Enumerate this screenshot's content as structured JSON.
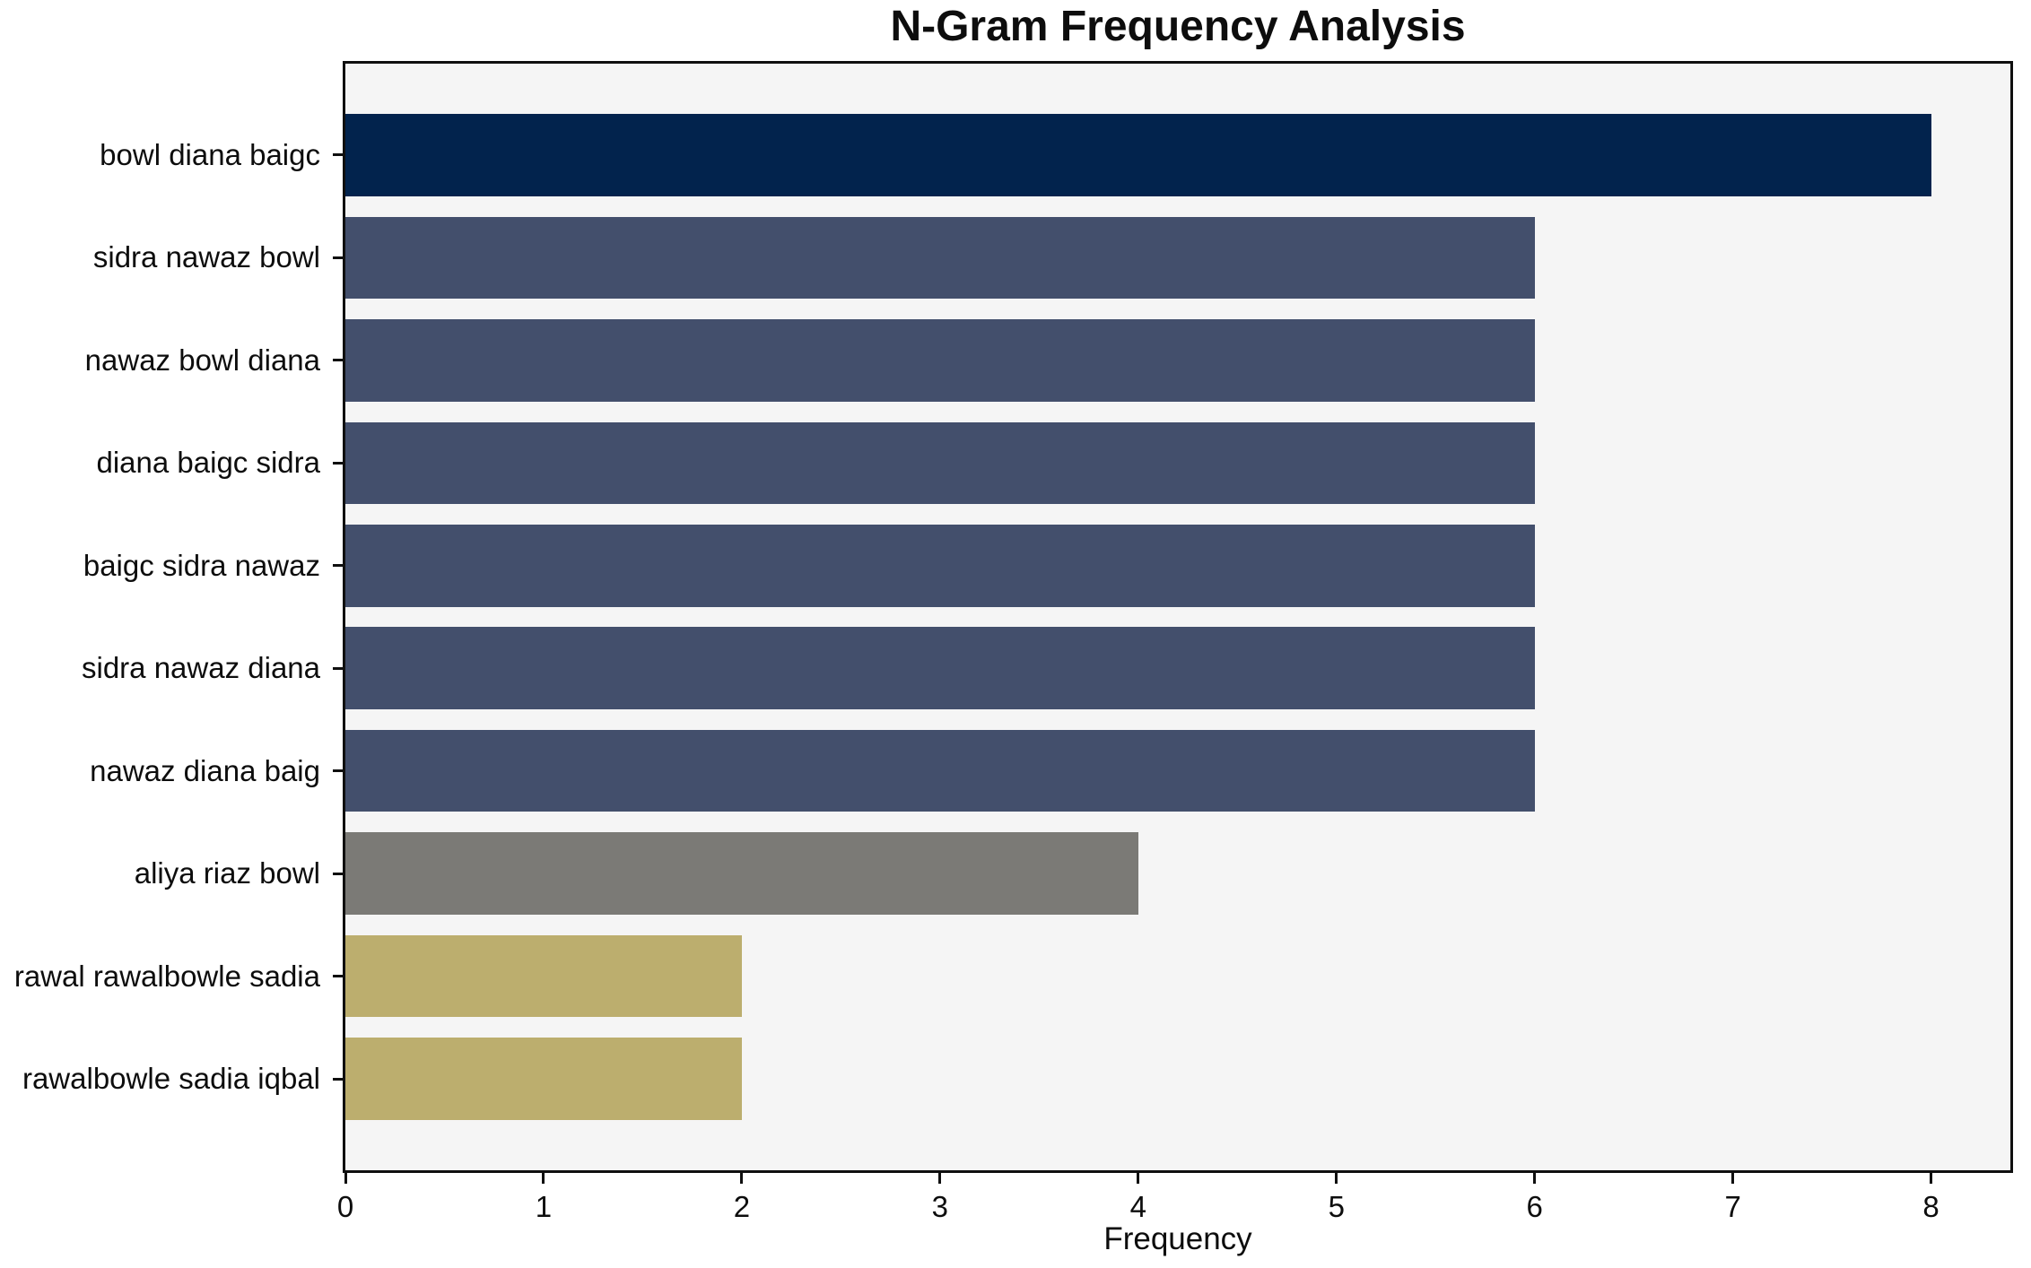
{
  "chart_data": {
    "type": "bar",
    "orientation": "horizontal",
    "title": "N-Gram Frequency Analysis",
    "xlabel": "Frequency",
    "ylabel": "",
    "categories": [
      "bowl diana baigc",
      "sidra nawaz bowl",
      "nawaz bowl diana",
      "diana baigc sidra",
      "baigc sidra nawaz",
      "sidra nawaz diana",
      "nawaz diana baig",
      "aliya riaz bowl",
      "rawal rawalbowle sadia",
      "rawalbowle sadia iqbal"
    ],
    "values": [
      8,
      6,
      6,
      6,
      6,
      6,
      6,
      4,
      2,
      2
    ],
    "bar_colors": [
      "#02234D",
      "#434F6C",
      "#434F6C",
      "#434F6C",
      "#434F6C",
      "#434F6C",
      "#434F6C",
      "#7B7A76",
      "#BCAE6E",
      "#BCAE6E"
    ],
    "x_ticks": [
      0,
      1,
      2,
      3,
      4,
      5,
      6,
      7,
      8
    ],
    "xlim": [
      0,
      8.4
    ],
    "ylim": [
      -0.89,
      9.89
    ],
    "bar_thickness": 0.8,
    "grid": false,
    "legend": "none",
    "plot_bg": "#F5F5F5",
    "figure_bg": "#FFFFFF",
    "spine_color": "#0F0F0F",
    "text_color": "#0D0D0D"
  }
}
